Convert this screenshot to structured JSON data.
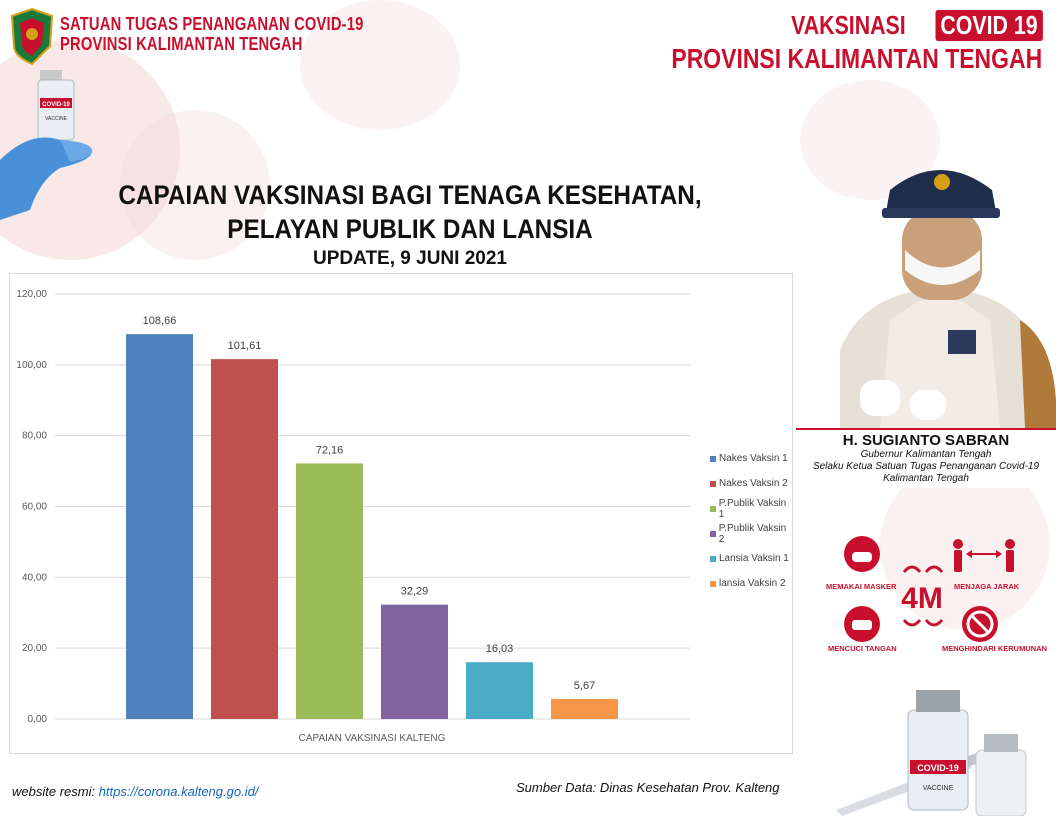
{
  "header": {
    "org_line1": "SATUAN TUGAS PENANGANAN COVID-19",
    "org_line2": "PROVINSI KALIMANTAN TENGAH",
    "right_line1_a": "VAKSINASI",
    "right_line1_b": "COVID 19",
    "right_line2": "PROVINSI KALIMANTAN TENGAH"
  },
  "title": {
    "line1": "CAPAIAN VAKSINASI BAGI TENAGA KESEHATAN,",
    "line2": "PELAYAN PUBLIK DAN LANSIA",
    "update": "UPDATE, 9 JUNI 2021"
  },
  "chart_data": {
    "type": "bar",
    "categories": [
      "CAPAIAN VAKSINASI KALTENG"
    ],
    "series": [
      {
        "name": "Nakes Vaksin 1",
        "values": [
          108.66
        ],
        "label": "108,66",
        "color": "#4f81bd"
      },
      {
        "name": "Nakes Vaksin 2",
        "values": [
          101.61
        ],
        "label": "101,61",
        "color": "#c0504d"
      },
      {
        "name": "P.Publik Vaksin 1",
        "values": [
          72.16
        ],
        "label": "72,16",
        "color": "#9bbb59"
      },
      {
        "name": "P.Publik Vaksin 2",
        "values": [
          32.29
        ],
        "label": "32,29",
        "color": "#8064a2"
      },
      {
        "name": "Lansia Vaksin 1",
        "values": [
          16.03
        ],
        "label": "16,03",
        "color": "#4bacc6"
      },
      {
        "name": "lansia Vaksin 2",
        "values": [
          5.67
        ],
        "label": "5,67",
        "color": "#f79646"
      }
    ],
    "yticks": [
      "0,00",
      "20,00",
      "40,00",
      "60,00",
      "80,00",
      "100,00",
      "120,00"
    ],
    "ylim": [
      0,
      120
    ],
    "grid": true,
    "legend_position": "right"
  },
  "person": {
    "name": "H. SUGIANTO SABRAN",
    "role1": "Gubernur Kalimantan Tengah",
    "role2": "Selaku Ketua Satuan Tugas Penanganan Covid-19",
    "role3": "Kalimantan Tengah"
  },
  "protocol": {
    "center": "4M",
    "mask": "MEMAKAI MASKER",
    "distance": "MENJAGA JARAK",
    "wash": "MENCUCI TANGAN",
    "crowd": "MENGHINDARI KERUMUNAN",
    "color": "#c8102e"
  },
  "footer": {
    "website_label": "website resmi:",
    "website_url": "https://corona.kalteng.go.id/",
    "source": "Sumber Data: Dinas Kesehatan Prov. Kalteng"
  },
  "vaccine_label": {
    "line1": "COVID-19",
    "line2": "VACCINE"
  }
}
